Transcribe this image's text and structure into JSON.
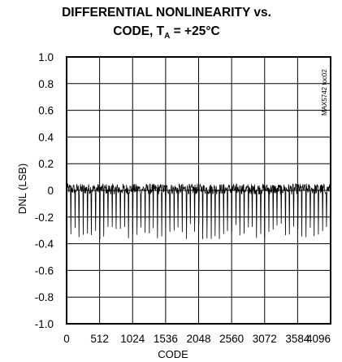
{
  "chart_data": {
    "type": "line",
    "title_line1": "DIFFERENTIAL NONLINEARITY vs.",
    "title_line2_prefix": "CODE, T",
    "title_subscript": "A",
    "title_line2_suffix": " = +25°C",
    "xlabel": "CODE",
    "ylabel": "DNL (LSB)",
    "figure_code": "MAX5742 toc02",
    "xlim": [
      0,
      4096
    ],
    "ylim": [
      -1.0,
      1.0
    ],
    "x_ticks": [
      0,
      512,
      1024,
      1536,
      2048,
      2560,
      3072,
      3584,
      4096
    ],
    "x_tick_labels": [
      "0",
      "512",
      "1024",
      "1536",
      "2048",
      "2560",
      "3072",
      "3584",
      "4096"
    ],
    "y_ticks": [
      1.0,
      0.8,
      0.6,
      0.4,
      0.2,
      0,
      -0.2,
      -0.4,
      -0.6,
      -0.8,
      -1.0
    ],
    "y_tick_labels": [
      "1.0",
      "0.8",
      "0.6",
      "0.4",
      "0.2",
      "0",
      "-0.2",
      "-0.4",
      "-0.6",
      "-0.8",
      "-1.0"
    ],
    "grid": true,
    "series": [
      {
        "noise_band": [
          -0.03,
          0.05
        ],
        "spike_period_codes": 64,
        "spike_min": -0.37,
        "spike_max": -0.25
      }
    ]
  }
}
